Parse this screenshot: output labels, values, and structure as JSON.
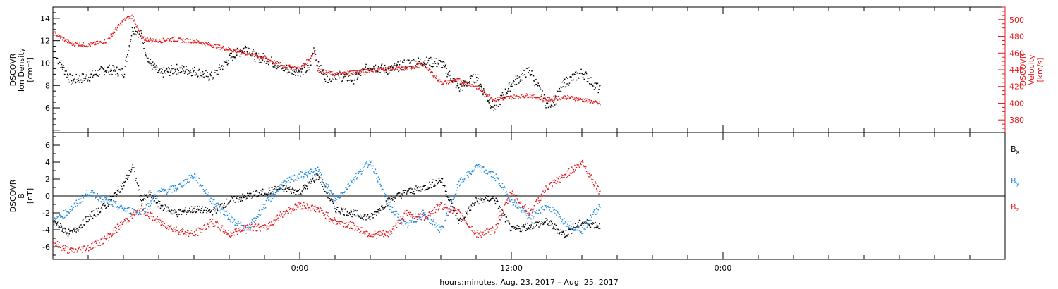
{
  "xaxis": {
    "label": "hours:minutes, Aug. 23, 2017 – Aug. 25, 2017",
    "range_hours": [
      -14,
      40
    ],
    "major_ticks": [
      {
        "h": 0,
        "label": "0:00"
      },
      {
        "h": 12,
        "label": "12:00"
      },
      {
        "h": 24,
        "label": "0:00"
      }
    ],
    "minor_step_hours": 2
  },
  "chart_data": [
    {
      "type": "scatter",
      "panel": "plasma",
      "ylabel_left": [
        "DSCOVR",
        "Ion Density",
        "[cm⁻³]"
      ],
      "ylabel_right": [
        "DSCOVR",
        "Velocity",
        "[km/s]"
      ],
      "yrange_left": [
        3.8,
        15
      ],
      "yticks_left": [
        6,
        8,
        10,
        12,
        14
      ],
      "yrange_right": [
        365,
        515
      ],
      "yticks_right": [
        380,
        400,
        420,
        440,
        460,
        480,
        500
      ],
      "series": [
        {
          "axis": "left",
          "color": "#000000",
          "x": [
            -13.8,
            -13,
            -12,
            -11,
            -10,
            -9.5,
            -9,
            -8.6,
            -8,
            -7,
            -6,
            -5,
            -4,
            -3,
            -2.5,
            -2,
            -1,
            0,
            0.5,
            0.8,
            1,
            1.5,
            2,
            3,
            4,
            5,
            6,
            7,
            8,
            9,
            10,
            10.5,
            11,
            12,
            13,
            14,
            14.5,
            15,
            16,
            17
          ],
          "y": [
            10.5,
            8.5,
            8.8,
            9.5,
            9.2,
            13.2,
            12.5,
            10.2,
            9.1,
            9.5,
            9.3,
            8.8,
            10.5,
            11.5,
            10.5,
            10.5,
            9.6,
            9.3,
            9.5,
            11.5,
            9.8,
            8.7,
            9.0,
            8.6,
            9.8,
            9.4,
            10.0,
            10.2,
            10.0,
            7.8,
            8.8,
            7.2,
            6.0,
            8.2,
            9.4,
            6.3,
            6.8,
            8.3,
            9.2,
            7.6
          ]
        },
        {
          "axis": "right",
          "color": "#e31a1c",
          "x": [
            -14,
            -13,
            -12,
            -11,
            -10,
            -9.5,
            -9,
            -8,
            -7.5,
            -6,
            -5,
            -4,
            -3,
            -2,
            -1,
            0,
            0.5,
            0.8,
            1,
            2,
            3,
            4,
            5,
            6,
            7,
            8,
            9,
            10,
            11,
            12,
            13,
            14,
            15,
            16,
            17
          ],
          "y": [
            485,
            472,
            470,
            475,
            500,
            505,
            478,
            475,
            477,
            475,
            470,
            465,
            460,
            455,
            445,
            442,
            453,
            462,
            440,
            435,
            438,
            440,
            442,
            442,
            447,
            425,
            428,
            420,
            405,
            408,
            410,
            405,
            408,
            405,
            400
          ]
        }
      ]
    },
    {
      "type": "scatter",
      "panel": "magnetic-field",
      "ylabel_left": [
        "DSCOVR",
        "B",
        "[nT]"
      ],
      "yrange": [
        -7.5,
        7.5
      ],
      "yticks": [
        -6,
        -4,
        -2,
        0,
        2,
        4,
        6
      ],
      "zero_line": true,
      "legend_placement": "right",
      "series": [
        {
          "name": "B",
          "sub": "x",
          "color": "#000000",
          "x": [
            -14,
            -13,
            -12,
            -11,
            -10,
            -9.5,
            -9,
            -8.5,
            -8,
            -7,
            -6,
            -5,
            -4,
            -3,
            -2,
            -1,
            0,
            1,
            2,
            3,
            4,
            5,
            6,
            7,
            8,
            9,
            10,
            11,
            12,
            13,
            14,
            15,
            16,
            17
          ],
          "y": [
            -3.0,
            -4.5,
            -2.5,
            -1.0,
            1.5,
            3.5,
            -0.5,
            0.3,
            -1.0,
            -2.0,
            -1.5,
            -1.8,
            -0.5,
            0.0,
            0.5,
            1.0,
            0.5,
            2.5,
            -1.5,
            -2.0,
            -2.5,
            -0.5,
            0.5,
            1.0,
            2.0,
            -3.0,
            -0.5,
            -0.2,
            -4.0,
            -3.5,
            -3.0,
            -4.5,
            -3.0,
            -3.5
          ]
        },
        {
          "name": "B",
          "sub": "y",
          "color": "#1f8ae0",
          "x": [
            -14,
            -13,
            -12,
            -11,
            -10,
            -9,
            -8,
            -7,
            -6,
            -5,
            -4,
            -3,
            -2,
            -1,
            0,
            1,
            2,
            3,
            4,
            5,
            6,
            7,
            8,
            9,
            10,
            11,
            12,
            13,
            14,
            15,
            16,
            17
          ],
          "y": [
            -3.0,
            -1.5,
            0.5,
            -0.5,
            -1.5,
            -2.0,
            0.5,
            1.0,
            2.5,
            -0.5,
            -2.5,
            -4.0,
            -1.0,
            1.5,
            2.5,
            3.0,
            -0.5,
            2.0,
            4.2,
            -1.0,
            -3.5,
            -2.0,
            -4.0,
            1.5,
            3.5,
            2.5,
            -0.5,
            -2.5,
            -1.0,
            -3.0,
            -4.0,
            -1.0
          ]
        },
        {
          "name": "B",
          "sub": "z",
          "color": "#e31a1c",
          "x": [
            -14,
            -13,
            -12,
            -11,
            -10,
            -9,
            -8,
            -7,
            -6,
            -5,
            -4,
            -3,
            -2,
            -1,
            0,
            1,
            2,
            3,
            4,
            5,
            6,
            7,
            8,
            9,
            10,
            11,
            12,
            13,
            14,
            15,
            16,
            17
          ],
          "y": [
            -5.5,
            -6.5,
            -6.0,
            -5.0,
            -3.0,
            -1.5,
            -3.0,
            -4.0,
            -4.5,
            -3.0,
            -4.5,
            -3.5,
            -3.8,
            -2.0,
            -1.0,
            -1.5,
            -3.0,
            -3.5,
            -4.5,
            -4.5,
            -2.0,
            -2.5,
            -1.0,
            -2.0,
            -4.5,
            -4.0,
            0.5,
            -2.0,
            1.0,
            2.5,
            4.0,
            0.5
          ]
        }
      ]
    }
  ]
}
